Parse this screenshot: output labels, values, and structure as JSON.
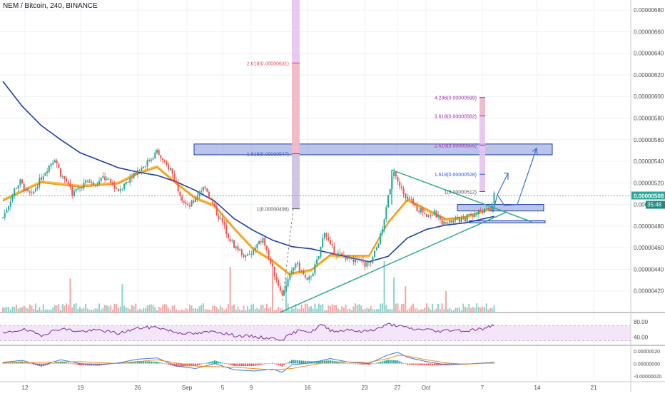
{
  "header": {
    "title": "NEM / Bitcoin, 240, BINANCE"
  },
  "colors": {
    "background": "#ffffff",
    "grid": "#eef0f4",
    "up": "#26a69a",
    "down": "#ef5350",
    "ma_blue": "#1e3f9e",
    "ema_orange": "#f7a21b",
    "trendline": "#27a590",
    "zone_fill": "#8e9fdc",
    "zone_border": "#1e3f9e",
    "fib_red": "#e84a4a",
    "fib_purple": "#a02bb0",
    "fib_blue": "#2f5bd8",
    "rsi_line": "#7e2b9c",
    "rsi_band": "#f3e6f9",
    "price_label": "#26a69a",
    "countdown_label": "#1f8b7e"
  },
  "chart_data": [
    {
      "type": "line",
      "title": "NEM / Bitcoin, 240, BINANCE",
      "xlabel": "",
      "ylabel": "",
      "x_ticks": [
        "12",
        "19",
        "26",
        "Sep",
        "5",
        "9",
        "16",
        "23",
        "27",
        "Oct",
        "7",
        "14",
        "21"
      ],
      "y_ticks": [
        "0.00000680",
        "0.00000660",
        "0.00000640",
        "0.00000620",
        "0.00000600",
        "0.00000580",
        "0.00000560",
        "0.00000540",
        "0.00000520",
        "0.00000500",
        "0.00000480",
        "0.00000460",
        "0.00000440",
        "0.00000420"
      ],
      "ylim": [
        4e-06,
        6.893e-06
      ],
      "grid": true,
      "current_price": "0.00000508",
      "countdown": "35:48",
      "series": [
        {
          "type": "candlestick",
          "interval": "240",
          "close_path": [
            [
              0,
              4.88e-06
            ],
            [
              3,
              5e-06
            ],
            [
              6,
              5.14e-06
            ],
            [
              9,
              5.21e-06
            ],
            [
              12,
              5.12e-06
            ],
            [
              15,
              5.08e-06
            ],
            [
              18,
              5.19e-06
            ],
            [
              21,
              5.28e-06
            ],
            [
              24,
              5.36e-06
            ],
            [
              27,
              5.43e-06
            ],
            [
              30,
              5.28e-06
            ],
            [
              33,
              5.21e-06
            ],
            [
              36,
              5.1e-06
            ],
            [
              40,
              5.16e-06
            ],
            [
              44,
              5.22e-06
            ],
            [
              48,
              5.17e-06
            ],
            [
              52,
              5.25e-06
            ],
            [
              56,
              5.2e-06
            ],
            [
              60,
              5.13e-06
            ],
            [
              64,
              5.21e-06
            ],
            [
              68,
              5.29e-06
            ],
            [
              72,
              5.34e-06
            ],
            [
              76,
              5.41e-06
            ],
            [
              80,
              5.49e-06
            ],
            [
              84,
              5.37e-06
            ],
            [
              87,
              5.33e-06
            ],
            [
              90,
              5.19e-06
            ],
            [
              93,
              5.06e-06
            ],
            [
              96,
              4.97e-06
            ],
            [
              99,
              5.03e-06
            ],
            [
              102,
              5.12e-06
            ],
            [
              105,
              5.17e-06
            ],
            [
              108,
              5.04e-06
            ],
            [
              111,
              4.92e-06
            ],
            [
              114,
              4.83e-06
            ],
            [
              117,
              4.71e-06
            ],
            [
              120,
              4.62e-06
            ],
            [
              123,
              4.57e-06
            ],
            [
              126,
              4.51e-06
            ],
            [
              129,
              4.54e-06
            ],
            [
              132,
              4.62e-06
            ],
            [
              135,
              4.68e-06
            ],
            [
              138,
              4.51e-06
            ],
            [
              141,
              4.35e-06
            ],
            [
              144,
              4.21e-06
            ],
            [
              145,
              4.16e-06
            ],
            [
              147,
              4.26e-06
            ],
            [
              150,
              4.37e-06
            ],
            [
              152,
              4.46e-06
            ],
            [
              155,
              4.38e-06
            ],
            [
              158,
              4.28e-06
            ],
            [
              161,
              4.38e-06
            ],
            [
              164,
              4.52e-06
            ],
            [
              167,
              4.76e-06
            ],
            [
              170,
              4.61e-06
            ],
            [
              173,
              4.55e-06
            ],
            [
              176,
              4.52e-06
            ],
            [
              179,
              4.51e-06
            ],
            [
              182,
              4.46e-06
            ],
            [
              185,
              4.51e-06
            ],
            [
              188,
              4.43e-06
            ],
            [
              191,
              4.46e-06
            ],
            [
              194,
              4.6e-06
            ],
            [
              197,
              4.77e-06
            ],
            [
              200,
              5.09e-06
            ],
            [
              203,
              5.32e-06
            ],
            [
              206,
              5.16e-06
            ],
            [
              209,
              5.08e-06
            ],
            [
              212,
              5.02e-06
            ],
            [
              215,
              4.96e-06
            ],
            [
              218,
              4.94e-06
            ],
            [
              221,
              4.9e-06
            ],
            [
              224,
              4.92e-06
            ],
            [
              227,
              4.85e-06
            ],
            [
              230,
              4.81e-06
            ],
            [
              233,
              4.84e-06
            ],
            [
              236,
              4.86e-06
            ],
            [
              239,
              4.85e-06
            ],
            [
              242,
              4.91e-06
            ],
            [
              245,
              4.9e-06
            ],
            [
              248,
              4.95e-06
            ],
            [
              251,
              4.94e-06
            ],
            [
              253,
              4.96e-06
            ],
            [
              255,
              5.08e-06
            ]
          ]
        },
        {
          "name": "",
          "type": "line",
          "color": "#1e3f9e",
          "points": [
            [
              0,
              6.14e-06
            ],
            [
              10,
              5.91e-06
            ],
            [
              20,
              5.73e-06
            ],
            [
              30,
              5.6e-06
            ],
            [
              40,
              5.48e-06
            ],
            [
              50,
              5.41e-06
            ],
            [
              60,
              5.34e-06
            ],
            [
              70,
              5.3e-06
            ],
            [
              80,
              5.27e-06
            ],
            [
              90,
              5.21e-06
            ],
            [
              100,
              5.13e-06
            ],
            [
              110,
              5.03e-06
            ],
            [
              120,
              4.87e-06
            ],
            [
              130,
              4.76e-06
            ],
            [
              140,
              4.67e-06
            ],
            [
              150,
              4.61e-06
            ],
            [
              160,
              4.59e-06
            ],
            [
              170,
              4.55e-06
            ],
            [
              180,
              4.51e-06
            ],
            [
              190,
              4.47e-06
            ],
            [
              200,
              4.52e-06
            ],
            [
              210,
              4.69e-06
            ],
            [
              220,
              4.77e-06
            ],
            [
              230,
              4.81e-06
            ],
            [
              240,
              4.83e-06
            ],
            [
              250,
              4.87e-06
            ],
            [
              255,
              4.89e-06
            ]
          ]
        },
        {
          "name": "",
          "type": "line",
          "color": "#f7a21b",
          "points": [
            [
              0,
              5.05e-06
            ],
            [
              20,
              5.22e-06
            ],
            [
              40,
              5.18e-06
            ],
            [
              60,
              5.21e-06
            ],
            [
              70,
              5.3e-06
            ],
            [
              80,
              5.36e-06
            ],
            [
              90,
              5.21e-06
            ],
            [
              100,
              5.07e-06
            ],
            [
              110,
              5e-06
            ],
            [
              120,
              4.79e-06
            ],
            [
              130,
              4.6e-06
            ],
            [
              140,
              4.49e-06
            ],
            [
              150,
              4.35e-06
            ],
            [
              160,
              4.38e-06
            ],
            [
              170,
              4.52e-06
            ],
            [
              180,
              4.51e-06
            ],
            [
              190,
              4.51e-06
            ],
            [
              200,
              4.82e-06
            ],
            [
              210,
              5.03e-06
            ],
            [
              220,
              4.94e-06
            ],
            [
              230,
              4.85e-06
            ],
            [
              240,
              4.87e-06
            ],
            [
              255,
              4.96e-06
            ]
          ]
        }
      ],
      "annotations": {
        "fib_labels": [
          {
            "text": "2.618(0.00000631)",
            "value": 6.31e-06,
            "color": "#e84a4a"
          },
          {
            "text": "1.618(0.00000547)",
            "value": 5.47e-06,
            "color": "#2f5bd8"
          },
          {
            "text": "1(0.00000496)",
            "value": 4.96e-06,
            "color": "#555555"
          },
          {
            "text": "4.236(0.00000599)",
            "value": 5.99e-06,
            "color": "#a02bb0"
          },
          {
            "text": "3.618(0.00000582)",
            "value": 5.82e-06,
            "color": "#a02bb0"
          },
          {
            "text": "2.618(0.00000555)",
            "value": 5.55e-06,
            "color": "#a02bb0"
          },
          {
            "text": "1.618(0.00000528)",
            "value": 5.28e-06,
            "color": "#2f5bd8"
          },
          {
            "text": "1(0.00000512)",
            "value": 5.12e-06,
            "color": "#555555"
          }
        ],
        "resistance_zone": {
          "top": 5.56e-06,
          "bottom": 5.46e-06
        },
        "small_zone": {
          "top": 5e-06,
          "bottom": 4.94e-06
        },
        "support_line": 4.84e-06,
        "triangle_apex": 4.91e-06
      }
    },
    {
      "type": "line",
      "title": "",
      "y_ticks": [
        "80.00",
        "40.00"
      ],
      "ylim": [
        20,
        100
      ],
      "band": [
        30,
        70
      ],
      "series": [
        {
          "name": "",
          "points": [
            [
              0,
              48
            ],
            [
              10,
              60
            ],
            [
              20,
              45
            ],
            [
              30,
              62
            ],
            [
              40,
              54
            ],
            [
              50,
              58
            ],
            [
              60,
              49
            ],
            [
              70,
              63
            ],
            [
              80,
              66
            ],
            [
              90,
              52
            ],
            [
              100,
              48
            ],
            [
              110,
              55
            ],
            [
              120,
              44
            ],
            [
              130,
              41
            ],
            [
              140,
              36
            ],
            [
              145,
              34
            ],
            [
              150,
              48
            ],
            [
              155,
              60
            ],
            [
              160,
              52
            ],
            [
              165,
              72
            ],
            [
              170,
              58
            ],
            [
              175,
              55
            ],
            [
              180,
              61
            ],
            [
              185,
              53
            ],
            [
              190,
              57
            ],
            [
              195,
              62
            ],
            [
              200,
              73
            ],
            [
              205,
              70
            ],
            [
              210,
              63
            ],
            [
              215,
              59
            ],
            [
              220,
              61
            ],
            [
              225,
              54
            ],
            [
              230,
              57
            ],
            [
              235,
              59
            ],
            [
              240,
              55
            ],
            [
              245,
              60
            ],
            [
              250,
              61
            ],
            [
              255,
              72
            ]
          ]
        }
      ]
    },
    {
      "type": "line",
      "title": "",
      "y_ticks": [
        "0.00000020",
        "0.00000000",
        "-0.00000020"
      ],
      "ylim": [
        -2.8e-07,
        2.8e-07
      ],
      "series": [
        {
          "name": "",
          "points": [
            [
              0,
              2e-08
            ],
            [
              10,
              5e-08
            ],
            [
              20,
              -3e-08
            ],
            [
              30,
              6e-08
            ],
            [
              40,
              0.0
            ],
            [
              50,
              -2e-08
            ],
            [
              60,
              1e-08
            ],
            [
              70,
              7e-08
            ],
            [
              80,
              9e-08
            ],
            [
              90,
              -4e-08
            ],
            [
              100,
              -8e-08
            ],
            [
              110,
              0.0
            ],
            [
              120,
              -1e-07
            ],
            [
              130,
              -1.2e-07
            ],
            [
              140,
              -9e-08
            ],
            [
              145,
              -1.4e-07
            ],
            [
              150,
              -2e-08
            ],
            [
              160,
              1e-08
            ],
            [
              170,
              8e-08
            ],
            [
              180,
              2e-08
            ],
            [
              190,
              0.0
            ],
            [
              200,
              1.4e-07
            ],
            [
              205,
              1.8e-07
            ],
            [
              210,
              1e-07
            ],
            [
              220,
              3e-08
            ],
            [
              230,
              -2e-08
            ],
            [
              240,
              -1e-08
            ],
            [
              250,
              1e-08
            ],
            [
              255,
              2e-08
            ]
          ]
        },
        {
          "name": "",
          "points": [
            [
              0,
              1e-08
            ],
            [
              20,
              2e-08
            ],
            [
              40,
              3e-08
            ],
            [
              60,
              0.0
            ],
            [
              80,
              6e-08
            ],
            [
              100,
              -4e-08
            ],
            [
              120,
              -6e-08
            ],
            [
              140,
              -1e-07
            ],
            [
              150,
              -8e-08
            ],
            [
              170,
              3e-08
            ],
            [
              190,
              2e-08
            ],
            [
              200,
              8e-08
            ],
            [
              205,
              1.3e-07
            ],
            [
              210,
              1.2e-07
            ],
            [
              220,
              6e-08
            ],
            [
              230,
              1e-08
            ],
            [
              240,
              -1e-08
            ],
            [
              255,
              1e-08
            ]
          ]
        }
      ]
    }
  ]
}
